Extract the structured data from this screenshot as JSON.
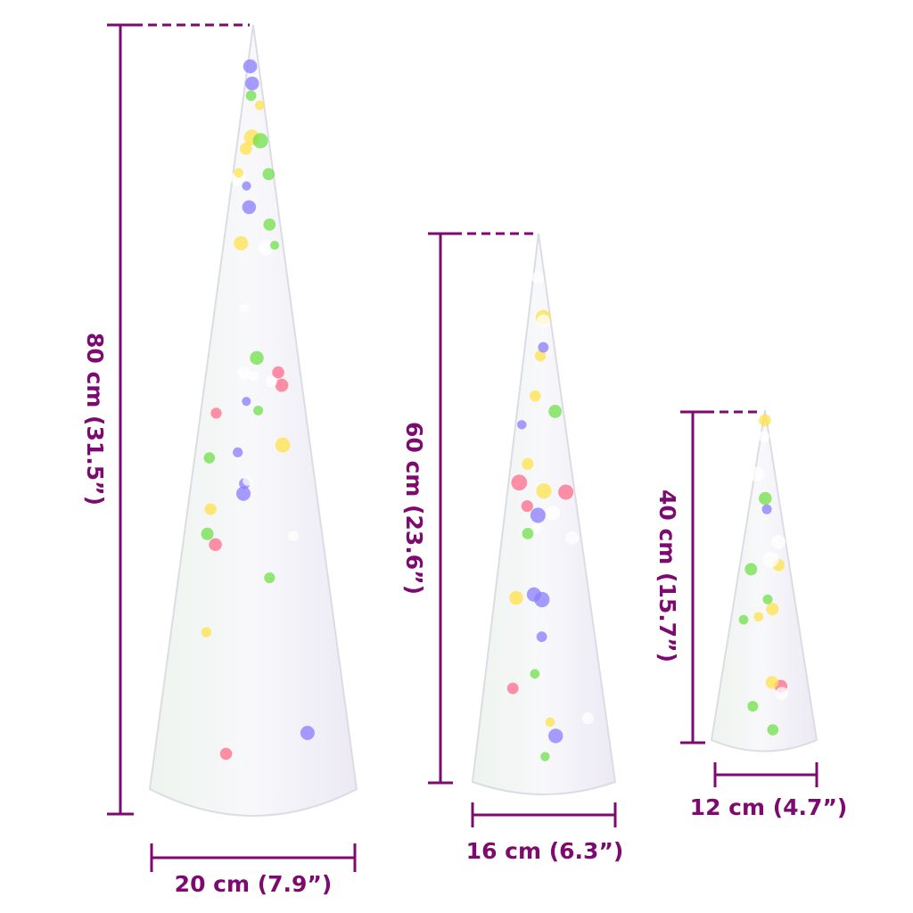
{
  "accent_color": "#7d0a6f",
  "light_colors": [
    "#ffe14a",
    "#6fe04a",
    "#ff6b8a",
    "#8a7bff",
    "#ffffff"
  ],
  "products": [
    {
      "height_label": "80 cm (31.5”)",
      "width_label": "20 cm (7.9”)"
    },
    {
      "height_label": "60 cm (23.6”)",
      "width_label": "16 cm (6.3”)"
    },
    {
      "height_label": "40 cm (15.7”)",
      "width_label": "12 cm (4.7”)"
    }
  ]
}
